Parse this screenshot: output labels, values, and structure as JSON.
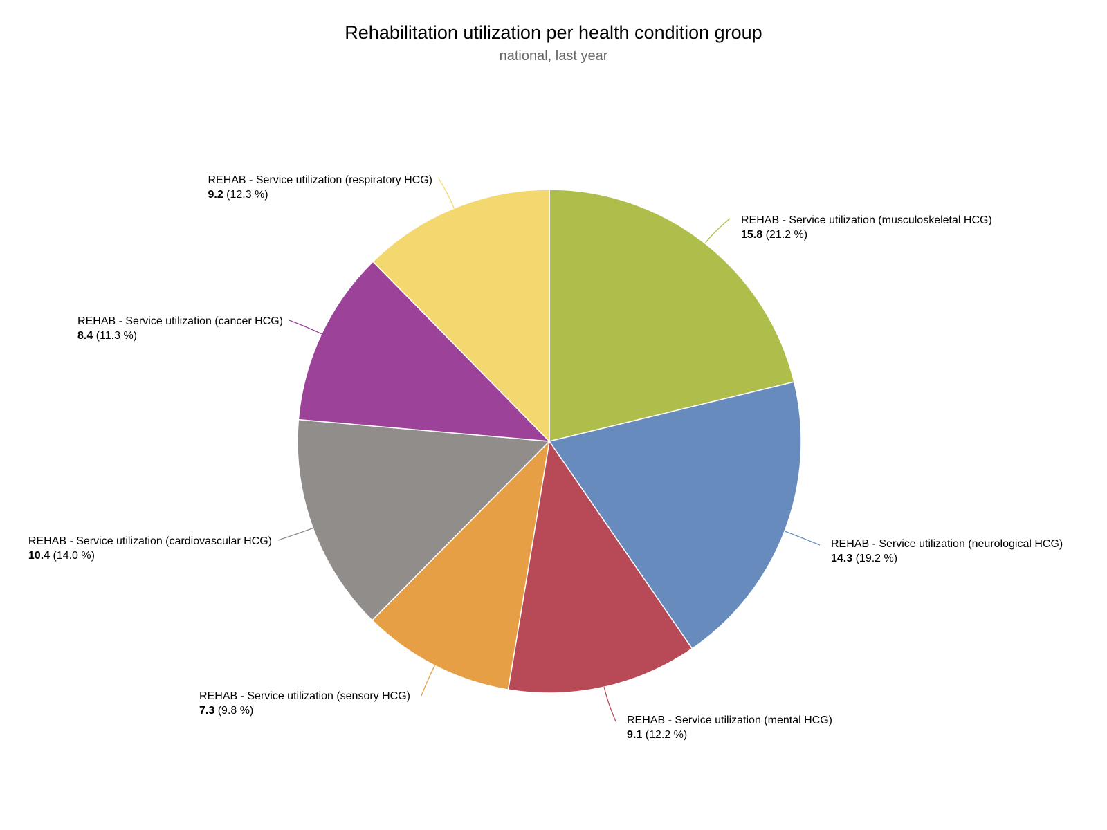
{
  "chart_data": {
    "type": "pie",
    "title": "Rehabilitation utilization per health condition group",
    "subtitle": "national, last year",
    "slices": [
      {
        "name": "REHAB - Service utilization (musculoskeletal HCG)",
        "value": 15.8,
        "percent_label": "(21.2 %)",
        "color": "#afbe4b"
      },
      {
        "name": "REHAB - Service utilization (neurological HCG)",
        "value": 14.3,
        "percent_label": "(19.2 %)",
        "color": "#688bbe"
      },
      {
        "name": "REHAB - Service utilization (mental HCG)",
        "value": 9.1,
        "percent_label": "(12.2 %)",
        "color": "#b84a57"
      },
      {
        "name": "REHAB - Service utilization (sensory HCG)",
        "value": 7.3,
        "percent_label": "(9.8 %)",
        "color": "#e79f45"
      },
      {
        "name": "REHAB - Service utilization (cardiovascular HCG)",
        "value": 10.4,
        "percent_label": "(14.0 %)",
        "color": "#918d8b"
      },
      {
        "name": "REHAB - Service utilization (cancer HCG)",
        "value": 8.4,
        "percent_label": "(11.3 %)",
        "color": "#9d4299"
      },
      {
        "name": "REHAB - Service utilization (respiratory HCG)",
        "value": 9.2,
        "percent_label": "(12.3 %)",
        "color": "#f3d870"
      }
    ]
  }
}
